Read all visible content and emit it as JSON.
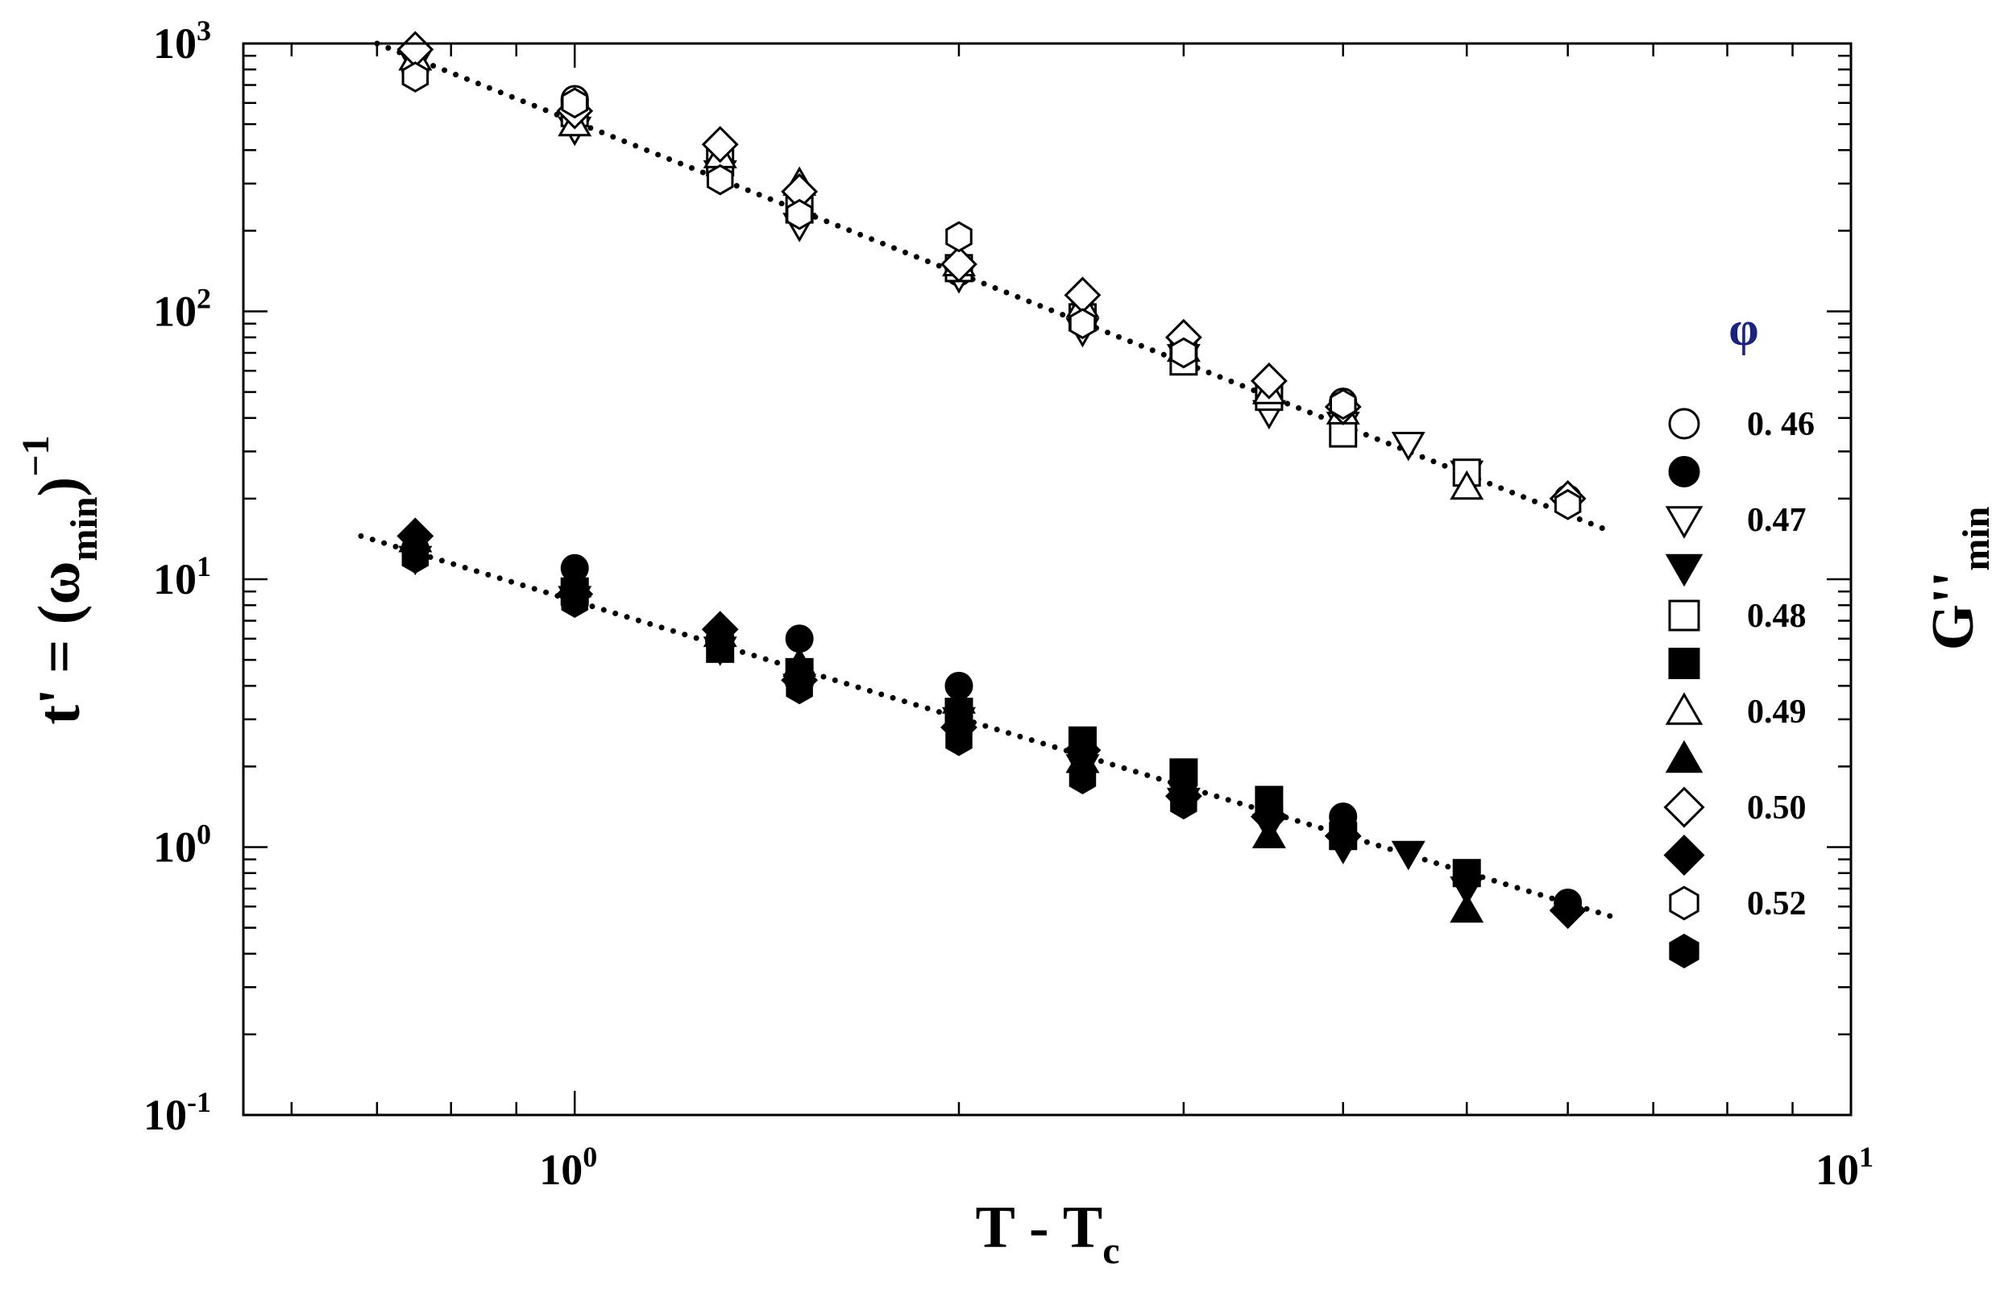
{
  "chart_data": {
    "type": "scatter",
    "x_scale": "log",
    "y_scale": "log",
    "xlim": [
      0.55,
      10
    ],
    "ylim": [
      0.1,
      1000
    ],
    "xlabel": {
      "main": "T - T",
      "sub": "c"
    },
    "ylabel": {
      "pre": "t' = (ω",
      "sub": "min",
      "post": ")",
      "sup": "−1"
    },
    "right_label": {
      "main": "G''",
      "sub": "min"
    },
    "legend_title": "φ",
    "legend_placement": "right",
    "x_ticks": [
      {
        "value": 1,
        "base": "10",
        "exp": "0"
      },
      {
        "value": 10,
        "base": "10",
        "exp": "1"
      }
    ],
    "y_ticks": [
      {
        "value": 0.1,
        "base": "10",
        "exp": "-1"
      },
      {
        "value": 1,
        "base": "10",
        "exp": "0"
      },
      {
        "value": 10,
        "base": "10",
        "exp": "1"
      },
      {
        "value": 100,
        "base": "10",
        "exp": "2"
      },
      {
        "value": 1000,
        "base": "10",
        "exp": "3"
      }
    ],
    "fit_lines": [
      {
        "x": [
          0.7,
          6.5
        ],
        "y": [
          1000,
          15
        ]
      },
      {
        "x": [
          0.68,
          6.5
        ],
        "y": [
          14.5,
          0.55
        ]
      }
    ],
    "series": [
      {
        "name": "0. 46",
        "marker": "circle",
        "filled": false,
        "points": [
          [
            0.75,
            800
          ],
          [
            1.0,
            620
          ],
          [
            1.0,
            520
          ],
          [
            1.3,
            340
          ],
          [
            1.5,
            250
          ],
          [
            2.0,
            140
          ],
          [
            2.5,
            100
          ],
          [
            3.0,
            78
          ],
          [
            3.5,
            52
          ],
          [
            4.0,
            46
          ],
          [
            6.0,
            20
          ]
        ]
      },
      {
        "name": "",
        "marker": "circle",
        "filled": true,
        "points": [
          [
            0.75,
            13
          ],
          [
            1.0,
            11
          ],
          [
            1.3,
            6
          ],
          [
            1.5,
            6
          ],
          [
            2.0,
            4
          ],
          [
            2.5,
            2.2
          ],
          [
            3.0,
            1.6
          ],
          [
            3.5,
            1.4
          ],
          [
            4.0,
            1.3
          ],
          [
            6.0,
            0.62
          ]
        ]
      },
      {
        "name": "0.47",
        "marker": "triangle-down",
        "filled": false,
        "points": [
          [
            0.75,
            850
          ],
          [
            1.0,
            480
          ],
          [
            1.3,
            330
          ],
          [
            1.5,
            210
          ],
          [
            2.0,
            135
          ],
          [
            2.5,
            85
          ],
          [
            3.0,
            68
          ],
          [
            3.5,
            42
          ],
          [
            4.0,
            38
          ],
          [
            4.5,
            32
          ],
          [
            5.0,
            25
          ]
        ]
      },
      {
        "name": "",
        "marker": "triangle-down",
        "filled": true,
        "points": [
          [
            0.75,
            12
          ],
          [
            1.0,
            8.5
          ],
          [
            1.3,
            5.5
          ],
          [
            1.5,
            4
          ],
          [
            2.0,
            3
          ],
          [
            2.5,
            2
          ],
          [
            3.0,
            1.5
          ],
          [
            3.5,
            1.2
          ],
          [
            4.0,
            1.0
          ],
          [
            4.5,
            0.95
          ],
          [
            5.0,
            0.7
          ]
        ]
      },
      {
        "name": "0.48",
        "marker": "square",
        "filled": false,
        "points": [
          [
            1.0,
            550
          ],
          [
            1.3,
            360
          ],
          [
            1.5,
            240
          ],
          [
            2.0,
            145
          ],
          [
            2.5,
            95
          ],
          [
            3.0,
            65
          ],
          [
            3.5,
            48
          ],
          [
            4.0,
            35
          ],
          [
            5.0,
            25
          ]
        ]
      },
      {
        "name": "",
        "marker": "square",
        "filled": true,
        "points": [
          [
            1.0,
            9
          ],
          [
            1.3,
            5.5
          ],
          [
            1.5,
            4.5
          ],
          [
            2.0,
            3.2
          ],
          [
            2.5,
            2.5
          ],
          [
            3.0,
            1.9
          ],
          [
            3.5,
            1.5
          ],
          [
            4.0,
            1.1
          ],
          [
            5.0,
            0.8
          ]
        ]
      },
      {
        "name": "0.49",
        "marker": "triangle-up",
        "filled": false,
        "points": [
          [
            0.75,
            880
          ],
          [
            1.0,
            500
          ],
          [
            1.3,
            380
          ],
          [
            1.5,
            300
          ],
          [
            2.0,
            150
          ],
          [
            2.5,
            105
          ],
          [
            3.0,
            72
          ],
          [
            3.5,
            50
          ],
          [
            4.0,
            42
          ],
          [
            5.0,
            22
          ]
        ]
      },
      {
        "name": "",
        "marker": "triangle-up",
        "filled": true,
        "points": [
          [
            0.75,
            14
          ],
          [
            1.0,
            9.5
          ],
          [
            1.3,
            6.2
          ],
          [
            1.5,
            4.8
          ],
          [
            2.0,
            3.5
          ],
          [
            2.5,
            2.1
          ],
          [
            3.0,
            1.7
          ],
          [
            3.5,
            1.1
          ],
          [
            4.0,
            1.2
          ],
          [
            5.0,
            0.58
          ]
        ]
      },
      {
        "name": "0.50",
        "marker": "diamond",
        "filled": false,
        "points": [
          [
            0.75,
            950
          ],
          [
            1.0,
            560
          ],
          [
            1.3,
            420
          ],
          [
            1.5,
            280
          ],
          [
            2.0,
            150
          ],
          [
            2.5,
            115
          ],
          [
            3.0,
            80
          ],
          [
            3.5,
            55
          ],
          [
            4.0,
            44
          ],
          [
            6.0,
            20
          ]
        ]
      },
      {
        "name": "",
        "marker": "diamond",
        "filled": true,
        "points": [
          [
            0.75,
            14.5
          ],
          [
            1.0,
            8.8
          ],
          [
            1.3,
            6.5
          ],
          [
            1.5,
            4.2
          ],
          [
            2.0,
            2.8
          ],
          [
            2.5,
            2.3
          ],
          [
            3.0,
            1.55
          ],
          [
            3.5,
            1.3
          ],
          [
            4.0,
            1.1
          ],
          [
            6.0,
            0.58
          ]
        ]
      },
      {
        "name": "0.52",
        "marker": "hexagon",
        "filled": false,
        "points": [
          [
            0.75,
            750
          ],
          [
            1.0,
            600
          ],
          [
            1.3,
            310
          ],
          [
            1.5,
            230
          ],
          [
            2.0,
            190
          ],
          [
            2.5,
            90
          ],
          [
            3.0,
            70
          ],
          [
            4.0,
            45
          ],
          [
            6.0,
            19
          ]
        ]
      },
      {
        "name": "",
        "marker": "hexagon",
        "filled": true,
        "points": [
          [
            0.75,
            12
          ],
          [
            1.0,
            8.2
          ],
          [
            1.3,
            5.8
          ],
          [
            1.5,
            3.9
          ],
          [
            2.0,
            2.5
          ],
          [
            2.5,
            1.8
          ],
          [
            3.0,
            1.45
          ],
          [
            4.0,
            1.25
          ],
          [
            6.0,
            0.6
          ]
        ]
      }
    ]
  }
}
